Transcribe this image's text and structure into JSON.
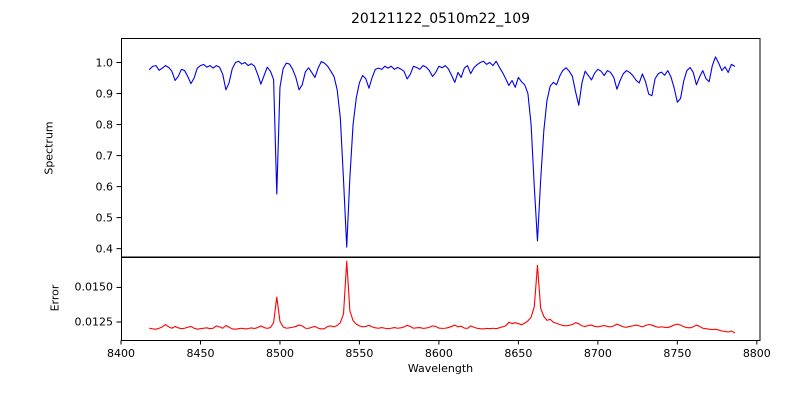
{
  "title": "20121122_0510m22_109",
  "colors": {
    "spectrum_line": "#0000ee",
    "error_line": "#ff0000",
    "axis": "#000000",
    "background": "#ffffff"
  },
  "chart_data": {
    "type": "line",
    "title": "20121122_0510m22_109",
    "xlabel": "Wavelength",
    "grid": false,
    "legend": null,
    "xlim": [
      8400,
      8802
    ],
    "xticks": [
      8400,
      8450,
      8500,
      8550,
      8600,
      8650,
      8700,
      8750,
      8800
    ],
    "xtick_labels": [
      "8400",
      "8450",
      "8500",
      "8550",
      "8600",
      "8650",
      "8700",
      "8750",
      "8800"
    ],
    "x": [
      8418,
      8420,
      8422,
      8424,
      8426,
      8428,
      8430,
      8432,
      8434,
      8436,
      8438,
      8440,
      8442,
      8444,
      8446,
      8448,
      8450,
      8452,
      8454,
      8456,
      8458,
      8460,
      8462,
      8464,
      8466,
      8468,
      8470,
      8472,
      8474,
      8476,
      8478,
      8480,
      8482,
      8484,
      8486,
      8488,
      8490,
      8492,
      8494,
      8496,
      8498,
      8500,
      8502,
      8504,
      8506,
      8508,
      8510,
      8512,
      8514,
      8516,
      8518,
      8520,
      8522,
      8524,
      8526,
      8528,
      8530,
      8532,
      8534,
      8536,
      8538,
      8540,
      8542,
      8544,
      8546,
      8548,
      8550,
      8552,
      8554,
      8556,
      8558,
      8560,
      8562,
      8564,
      8566,
      8568,
      8570,
      8572,
      8574,
      8576,
      8578,
      8580,
      8582,
      8584,
      8586,
      8588,
      8590,
      8592,
      8594,
      8596,
      8598,
      8600,
      8602,
      8604,
      8606,
      8608,
      8610,
      8612,
      8614,
      8616,
      8618,
      8620,
      8622,
      8624,
      8626,
      8628,
      8630,
      8632,
      8634,
      8636,
      8638,
      8640,
      8642,
      8644,
      8646,
      8648,
      8650,
      8652,
      8654,
      8656,
      8658,
      8660,
      8662,
      8664,
      8666,
      8668,
      8670,
      8672,
      8674,
      8676,
      8678,
      8680,
      8682,
      8684,
      8686,
      8688,
      8690,
      8692,
      8694,
      8696,
      8698,
      8700,
      8702,
      8704,
      8706,
      8708,
      8710,
      8712,
      8714,
      8716,
      8718,
      8720,
      8722,
      8724,
      8726,
      8728,
      8730,
      8732,
      8734,
      8736,
      8738,
      8740,
      8742,
      8744,
      8746,
      8748,
      8750,
      8752,
      8754,
      8756,
      8758,
      8760,
      8762,
      8764,
      8766,
      8768,
      8770,
      8772,
      8774,
      8776,
      8778,
      8780,
      8782,
      8784,
      8786
    ],
    "panels": [
      {
        "ylabel": "Spectrum",
        "ylim": [
          0.373,
          1.079
        ],
        "yticks": [
          1.0,
          0.9,
          0.8,
          0.7,
          0.6,
          0.5,
          0.4
        ],
        "ytick_labels": [
          "1.0",
          "0.9",
          "0.8",
          "0.7",
          "0.6",
          "0.5",
          "0.4"
        ],
        "series": {
          "name": "spectrum",
          "color": "#0000ee",
          "notable_absorption_lines": [
            8498,
            8542,
            8662
          ],
          "values": [
            0.978,
            0.988,
            0.99,
            0.975,
            0.982,
            0.99,
            0.984,
            0.972,
            0.942,
            0.955,
            0.978,
            0.974,
            0.955,
            0.932,
            0.95,
            0.982,
            0.99,
            0.994,
            0.985,
            0.99,
            0.982,
            0.99,
            0.985,
            0.962,
            0.912,
            0.935,
            0.98,
            1.0,
            1.004,
            0.995,
            1.0,
            0.99,
            0.996,
            0.988,
            0.962,
            0.93,
            0.958,
            0.985,
            0.972,
            0.945,
            0.576,
            0.92,
            0.98,
            0.998,
            0.995,
            0.978,
            0.952,
            0.912,
            0.928,
            0.97,
            0.983,
            0.968,
            0.952,
            0.982,
            1.003,
            0.998,
            0.988,
            0.972,
            0.955,
            0.912,
            0.82,
            0.62,
            0.405,
            0.63,
            0.8,
            0.885,
            0.935,
            0.958,
            0.948,
            0.917,
            0.952,
            0.978,
            0.982,
            0.978,
            0.988,
            0.982,
            0.988,
            0.978,
            0.984,
            0.979,
            0.972,
            0.947,
            0.962,
            0.988,
            0.984,
            0.978,
            0.99,
            0.985,
            0.974,
            0.955,
            0.968,
            0.988,
            0.983,
            0.99,
            0.979,
            0.958,
            0.936,
            0.968,
            0.952,
            0.982,
            0.99,
            0.964,
            0.983,
            0.993,
            1.0,
            1.004,
            0.994,
            1.0,
            0.99,
            1.004,
            0.985,
            0.968,
            0.948,
            0.926,
            0.942,
            0.92,
            0.952,
            0.938,
            0.928,
            0.9,
            0.8,
            0.6,
            0.425,
            0.62,
            0.78,
            0.878,
            0.924,
            0.936,
            0.928,
            0.956,
            0.975,
            0.983,
            0.972,
            0.955,
            0.905,
            0.862,
            0.935,
            0.972,
            0.958,
            0.944,
            0.966,
            0.978,
            0.972,
            0.958,
            0.974,
            0.968,
            0.952,
            0.914,
            0.942,
            0.964,
            0.974,
            0.968,
            0.958,
            0.943,
            0.934,
            0.963,
            0.938,
            0.898,
            0.893,
            0.948,
            0.964,
            0.969,
            0.959,
            0.974,
            0.953,
            0.918,
            0.872,
            0.884,
            0.94,
            0.974,
            0.984,
            0.968,
            0.928,
            0.954,
            0.974,
            0.948,
            0.938,
            0.99,
            1.018,
            0.998,
            0.974,
            0.986,
            0.968,
            0.994,
            0.988
          ]
        }
      },
      {
        "ylabel": "Error",
        "ylim": [
          0.0112,
          0.0172
        ],
        "yticks": [
          0.015,
          0.0125
        ],
        "ytick_labels": [
          "0.0150",
          "0.0125"
        ],
        "series": {
          "name": "error",
          "color": "#ff0000",
          "notable_peaks": [
            8498,
            8542,
            8662
          ],
          "values": [
            0.01205,
            0.012,
            0.01198,
            0.01205,
            0.01215,
            0.01232,
            0.01215,
            0.01205,
            0.01218,
            0.01208,
            0.01202,
            0.01205,
            0.01212,
            0.01218,
            0.01205,
            0.01198,
            0.01202,
            0.01205,
            0.01208,
            0.01202,
            0.01205,
            0.01222,
            0.01215,
            0.01205,
            0.01225,
            0.01212,
            0.012,
            0.01198,
            0.01202,
            0.01205,
            0.012,
            0.01203,
            0.01207,
            0.01203,
            0.0121,
            0.01222,
            0.0121,
            0.01204,
            0.0121,
            0.01245,
            0.0143,
            0.01255,
            0.01215,
            0.01205,
            0.01208,
            0.01212,
            0.01218,
            0.01228,
            0.01222,
            0.01205,
            0.01204,
            0.01212,
            0.01218,
            0.01206,
            0.012,
            0.01202,
            0.01218,
            0.01222,
            0.01215,
            0.01225,
            0.01245,
            0.0131,
            0.0169,
            0.0133,
            0.0126,
            0.01235,
            0.01222,
            0.01215,
            0.01218,
            0.01226,
            0.01215,
            0.01208,
            0.01205,
            0.0121,
            0.01205,
            0.01202,
            0.01205,
            0.0121,
            0.01205,
            0.01208,
            0.01214,
            0.01226,
            0.01218,
            0.01205,
            0.01208,
            0.0121,
            0.01204,
            0.01206,
            0.01212,
            0.01222,
            0.01218,
            0.01206,
            0.01204,
            0.01205,
            0.0121,
            0.01218,
            0.01228,
            0.01215,
            0.0122,
            0.01206,
            0.01204,
            0.01222,
            0.01212,
            0.01205,
            0.01202,
            0.012,
            0.01204,
            0.01202,
            0.01205,
            0.01202,
            0.01208,
            0.01215,
            0.01222,
            0.01248,
            0.01238,
            0.01245,
            0.01238,
            0.0123,
            0.01242,
            0.01258,
            0.01285,
            0.0136,
            0.0166,
            0.0135,
            0.0129,
            0.01262,
            0.0127,
            0.01248,
            0.0124,
            0.01232,
            0.01225,
            0.01222,
            0.01226,
            0.01232,
            0.01245,
            0.01238,
            0.01222,
            0.01218,
            0.01225,
            0.01228,
            0.01218,
            0.01215,
            0.0122,
            0.01225,
            0.01218,
            0.01215,
            0.01222,
            0.01235,
            0.01225,
            0.01215,
            0.01212,
            0.01218,
            0.01222,
            0.01228,
            0.01222,
            0.01215,
            0.01225,
            0.01232,
            0.01228,
            0.01218,
            0.01212,
            0.01215,
            0.01212,
            0.0121,
            0.01218,
            0.01228,
            0.01235,
            0.01228,
            0.01216,
            0.0121,
            0.01208,
            0.01215,
            0.01228,
            0.01218,
            0.01205,
            0.01202,
            0.01198,
            0.01195,
            0.01198,
            0.01192,
            0.01185,
            0.01182,
            0.01178,
            0.01185,
            0.01172
          ]
        }
      }
    ]
  }
}
